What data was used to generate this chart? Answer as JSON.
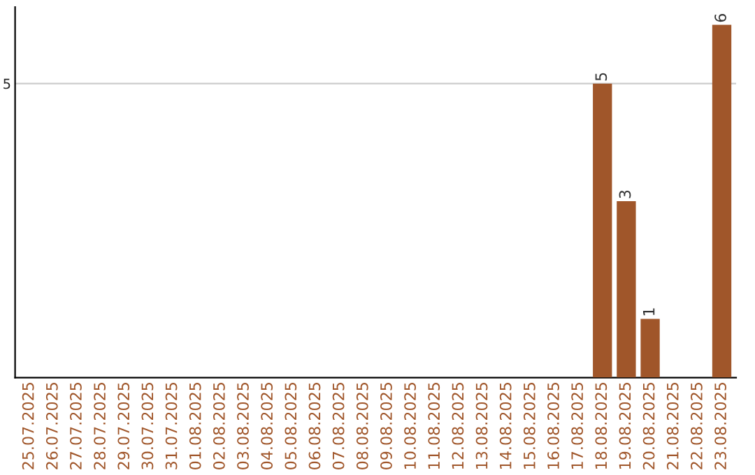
{
  "chart_data": {
    "type": "bar",
    "categories": [
      "25.07.2025",
      "26.07.2025",
      "27.07.2025",
      "28.07.2025",
      "29.07.2025",
      "30.07.2025",
      "31.07.2025",
      "01.08.2025",
      "02.08.2025",
      "03.08.2025",
      "04.08.2025",
      "05.08.2025",
      "06.08.2025",
      "07.08.2025",
      "08.08.2025",
      "09.08.2025",
      "10.08.2025",
      "11.08.2025",
      "12.08.2025",
      "13.08.2025",
      "14.08.2025",
      "15.08.2025",
      "16.08.2025",
      "17.08.2025",
      "18.08.2025",
      "19.08.2025",
      "20.08.2025",
      "21.08.2025",
      "22.08.2025",
      "23.08.2025"
    ],
    "values": [
      null,
      null,
      null,
      null,
      null,
      null,
      null,
      null,
      null,
      null,
      null,
      null,
      null,
      null,
      null,
      null,
      null,
      null,
      null,
      null,
      null,
      null,
      null,
      null,
      5,
      3,
      1,
      null,
      null,
      6
    ],
    "data_labels": true,
    "color": "#a0562a",
    "ylim": [
      0,
      6.3
    ],
    "yticks": [
      5
    ],
    "grid": "y"
  }
}
